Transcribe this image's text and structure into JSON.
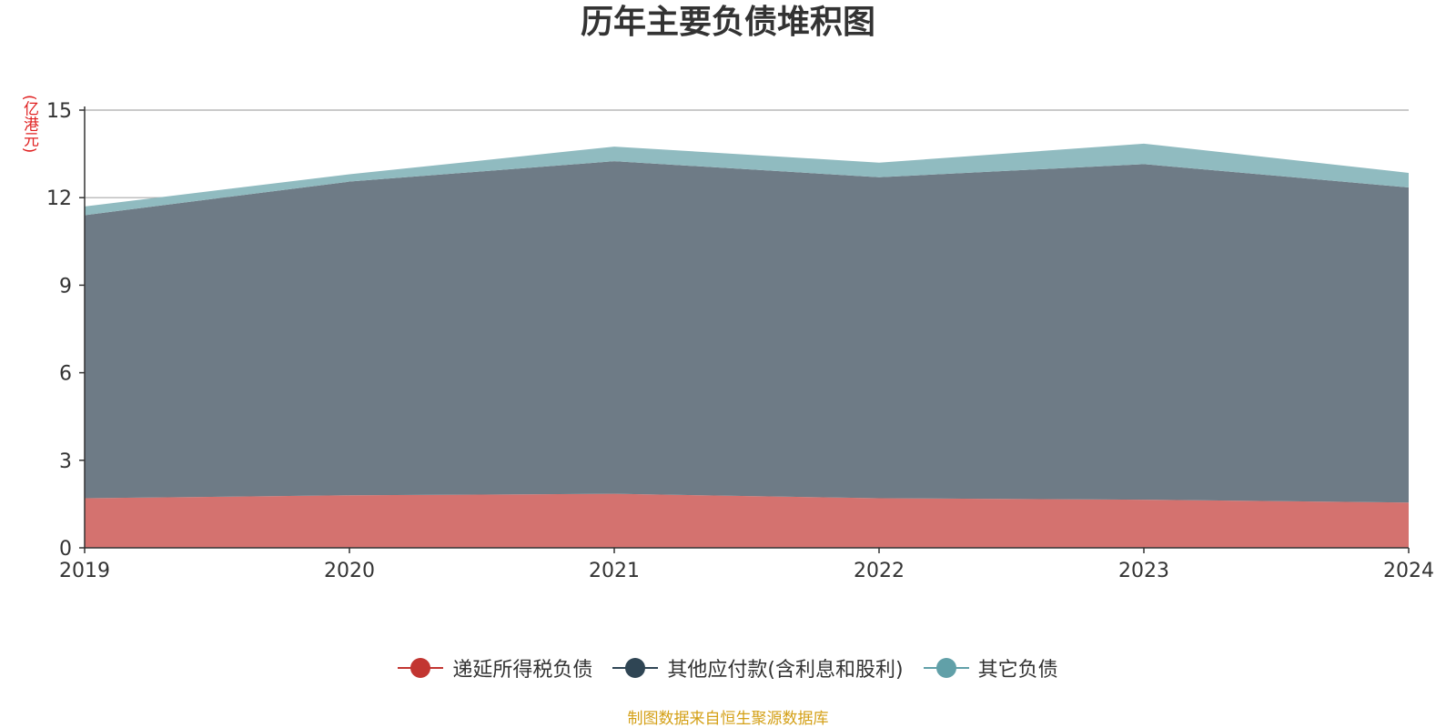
{
  "chart_data": {
    "type": "area",
    "stacked": true,
    "title": "历年主要负债堆积图",
    "unit_label": "(亿港元)",
    "x": [
      "2019",
      "2020",
      "2021",
      "2022",
      "2023",
      "2024"
    ],
    "ylim": [
      0,
      15
    ],
    "yticks": [
      "0",
      "3",
      "6",
      "9",
      "12",
      "15"
    ],
    "grid": true,
    "legend_position": "bottom",
    "series": [
      {
        "name": "递延所得税负债",
        "values": [
          1.7,
          1.8,
          1.85,
          1.7,
          1.65,
          1.55
        ],
        "color": "#c23531",
        "fill": "#d4726f"
      },
      {
        "name": "其他应付款(含利息和股利)",
        "values": [
          9.7,
          10.75,
          11.4,
          11.0,
          11.5,
          10.8
        ],
        "color": "#2f4554",
        "fill": "#6e7b86"
      },
      {
        "name": "其它负债",
        "values": [
          0.3,
          0.25,
          0.5,
          0.5,
          0.7,
          0.5
        ],
        "color": "#61a0a8",
        "fill": "#90bbc0"
      }
    ]
  },
  "footer": {
    "source": "制图数据来自恒生聚源数据库"
  }
}
